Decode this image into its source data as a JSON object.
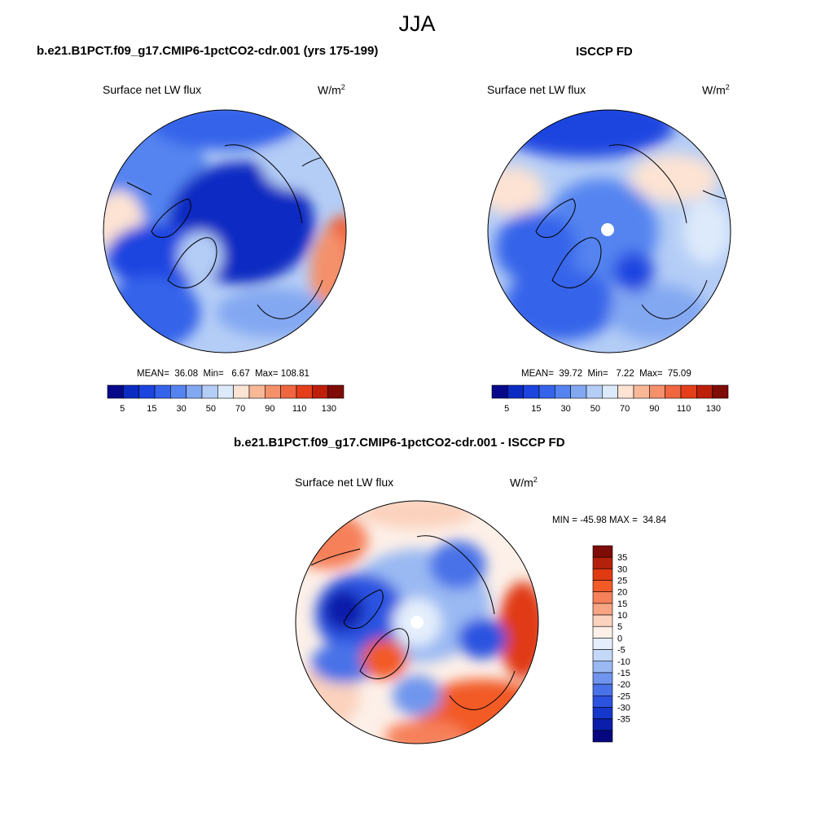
{
  "main_title": "JJA",
  "panels": [
    {
      "title": "b.e21.B1PCT.f09_g17.CMIP6-1pctCO2-cdr.001 (yrs 175-199)",
      "variable": "Surface net LW flux",
      "units": "W/m",
      "units_sup": "2",
      "stats": "MEAN=  36.08  Min=   6.67  Max= 108.81"
    },
    {
      "title": "ISCCP FD",
      "variable": "Surface net LW flux",
      "units": "W/m",
      "units_sup": "2",
      "stats": "MEAN=  39.72  Min=   7.22  Max=  75.09"
    },
    {
      "title": "b.e21.B1PCT.f09_g17.CMIP6-1pctCO2-cdr.001 - ISCCP FD",
      "variable": "Surface net LW flux",
      "units": "W/m",
      "units_sup": "2",
      "stats": "MIN = -45.98 MAX =  34.84"
    }
  ],
  "colorbar_abs": {
    "colors": [
      "#08088a",
      "#0c2bc2",
      "#1c45e0",
      "#3563ea",
      "#5584f0",
      "#83a8f2",
      "#b4cdf6",
      "#ddeafb",
      "#fde3d3",
      "#f8b898",
      "#f4906a",
      "#ef6640",
      "#e43e1a",
      "#bd1f0b",
      "#7f0c07"
    ],
    "tick_labels": [
      "5",
      "15",
      "30",
      "50",
      "70",
      "90",
      "110",
      "130"
    ]
  },
  "colorbar_diff": {
    "colors": [
      "#7f0c07",
      "#b3200b",
      "#e03a12",
      "#f25a28",
      "#f6805a",
      "#f7a582",
      "#fbd2bd",
      "#fdf0e8",
      "#e4eefc",
      "#c4d8f8",
      "#9ab9f3",
      "#6f95ee",
      "#4a72e8",
      "#2c52e0",
      "#1537cc",
      "#0a1eaa",
      "#06077f"
    ],
    "tick_labels": [
      "35",
      "30",
      "25",
      "20",
      "15",
      "10",
      "5",
      "0",
      "-5",
      "-10",
      "-15",
      "-20",
      "-25",
      "-30",
      "-35"
    ]
  },
  "map_data": {
    "projection": "north polar stereographic",
    "fields": [
      {
        "panel": "model",
        "colorbar": "absolute",
        "mean": 36.08,
        "min": 6.67,
        "max": 108.81
      },
      {
        "panel": "observations",
        "colorbar": "absolute",
        "mean": 39.72,
        "min": 7.22,
        "max": 75.09
      },
      {
        "panel": "difference",
        "colorbar": "difference",
        "min": -45.98,
        "max": 34.84
      }
    ]
  }
}
